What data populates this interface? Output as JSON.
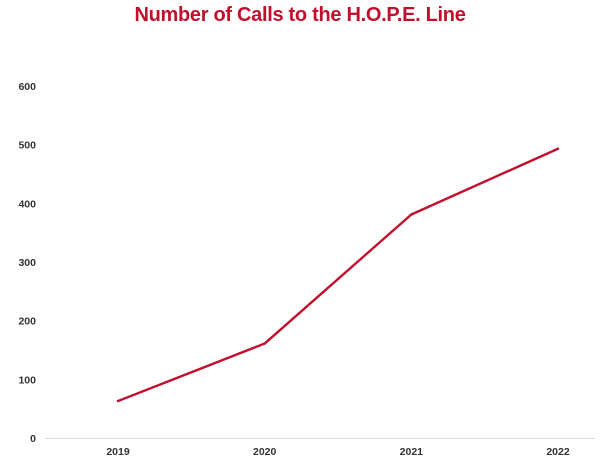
{
  "chart_data": {
    "type": "line",
    "title": "Number of Calls to the H.O.P.E. Line",
    "xlabel": "",
    "ylabel": "",
    "categories": [
      "2019",
      "2020",
      "2021",
      "2022"
    ],
    "series": [
      {
        "values": [
          63,
          161,
          381,
          493
        ]
      }
    ],
    "ylim": [
      0,
      600
    ],
    "yticks": [
      0,
      100,
      200,
      300,
      400,
      500,
      600
    ],
    "grid": false,
    "legend": "none",
    "colors": {
      "title": "#c0102e",
      "line": "#c0102e",
      "axis": "#dddddd",
      "tick_text": "#333333"
    }
  }
}
